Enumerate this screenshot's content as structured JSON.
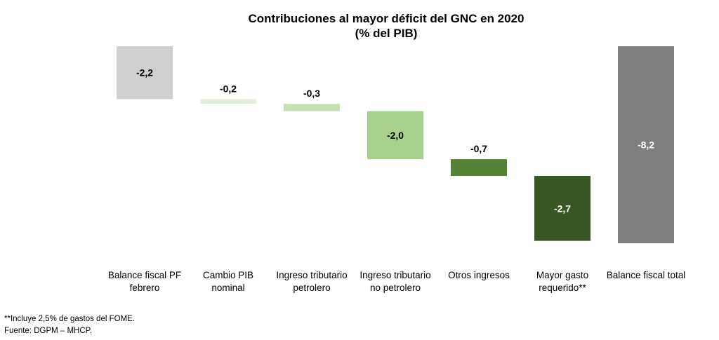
{
  "chart_data": {
    "type": "bar",
    "title": "Contribuciones al mayor déficit del GNC en 2020",
    "subtitle": "(% del PIB)",
    "xlabel": "",
    "ylabel": "",
    "categories": [
      [
        "Balance fiscal PF",
        "febrero"
      ],
      [
        "Cambio PIB",
        "nominal"
      ],
      [
        "Ingreso tributario",
        "petrolero"
      ],
      [
        "Ingreso tributario",
        "no petrolero"
      ],
      [
        "Otros ingresos"
      ],
      [
        "Mayor gasto",
        "requerido**"
      ],
      [
        "Balance fiscal total"
      ]
    ],
    "values": [
      -2.2,
      -0.2,
      -0.3,
      -2.0,
      -0.7,
      -2.7,
      -8.2
    ],
    "value_labels": [
      "-2,2",
      "-0,2",
      "-0,3",
      "-2,0",
      "-0,7",
      "-2,7",
      "-8,2"
    ],
    "bar_kinds": [
      "total",
      "step",
      "step",
      "step",
      "step",
      "step",
      "total"
    ],
    "colors": [
      "#d0d0d0",
      "#e2efdc",
      "#c6e0b4",
      "#a9d18e",
      "#548235",
      "#375623",
      "#7f7f7f"
    ],
    "label_colors": [
      "#000000",
      "#000000",
      "#000000",
      "#000000",
      "#ffffff",
      "#ffffff",
      "#ffffff"
    ],
    "ylim": [
      -8.2,
      0
    ],
    "grid": false,
    "legend": "none"
  },
  "footnotes": {
    "note": "**Incluye 2,5% de gastos del FOME.",
    "source": "Fuente: DGPM – MHCP."
  }
}
